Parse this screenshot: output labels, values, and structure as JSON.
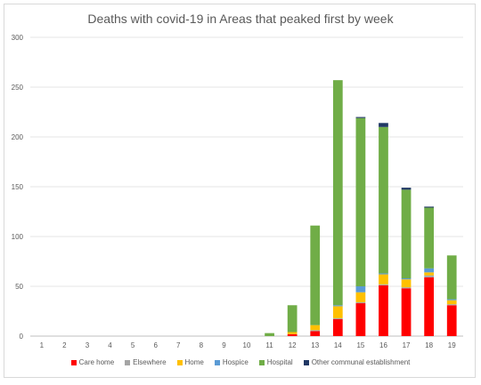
{
  "chart_data": {
    "type": "bar",
    "stacked": true,
    "title": "Deaths with covid-19 in Areas that peaked first by week",
    "xlabel": "",
    "ylabel": "",
    "ylim": [
      0,
      300
    ],
    "yticks": [
      0,
      50,
      100,
      150,
      200,
      250,
      300
    ],
    "grid": true,
    "legend_position": "bottom",
    "categories": [
      "1",
      "2",
      "3",
      "4",
      "5",
      "6",
      "7",
      "8",
      "9",
      "10",
      "11",
      "12",
      "13",
      "14",
      "15",
      "16",
      "17",
      "18",
      "19"
    ],
    "series": [
      {
        "name": "Care home",
        "color": "#ff0000",
        "values": [
          0,
          0,
          0,
          0,
          0,
          0,
          0,
          0,
          0,
          0,
          0,
          2,
          5,
          17,
          33,
          51,
          48,
          59,
          31
        ]
      },
      {
        "name": "Elsewhere",
        "color": "#a5a5a5",
        "values": [
          0,
          0,
          0,
          0,
          0,
          0,
          0,
          0,
          0,
          0,
          0,
          0,
          1,
          1,
          1,
          1,
          1,
          2,
          1
        ]
      },
      {
        "name": "Home",
        "color": "#ffc000",
        "values": [
          0,
          0,
          0,
          0,
          0,
          0,
          0,
          0,
          0,
          0,
          0,
          2,
          5,
          12,
          10,
          10,
          8,
          3,
          4
        ]
      },
      {
        "name": "Hospice",
        "color": "#5b9bd5",
        "values": [
          0,
          0,
          0,
          0,
          0,
          0,
          0,
          0,
          0,
          0,
          0,
          0,
          0,
          1,
          6,
          1,
          1,
          4,
          1
        ]
      },
      {
        "name": "Hospital",
        "color": "#70ad47",
        "values": [
          0,
          0,
          0,
          0,
          0,
          0,
          0,
          0,
          0,
          0,
          3,
          27,
          100,
          226,
          169,
          147,
          89,
          61,
          44
        ]
      },
      {
        "name": "Other communal establishment",
        "color": "#203864",
        "values": [
          0,
          0,
          0,
          0,
          0,
          0,
          0,
          0,
          0,
          0,
          0,
          0,
          0,
          0,
          1,
          4,
          2,
          1,
          0
        ]
      }
    ]
  }
}
